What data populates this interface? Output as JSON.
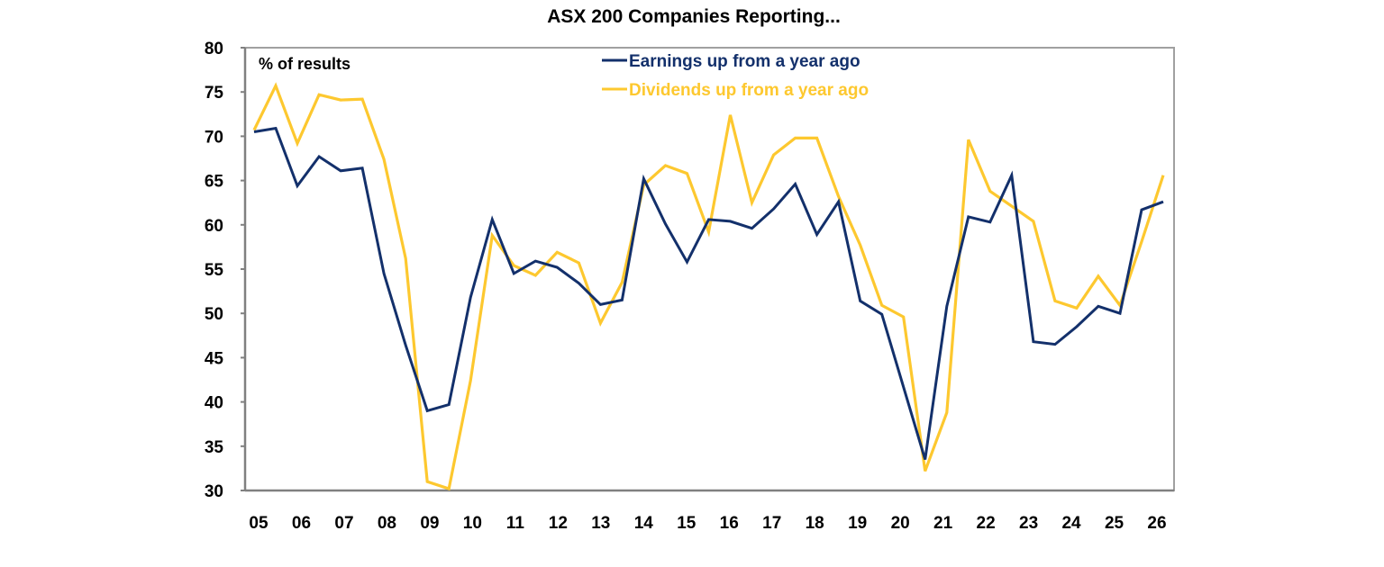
{
  "chart_data": {
    "type": "line",
    "title": "ASX 200 Companies Reporting...",
    "ylabel": "% of results",
    "xlabel": "",
    "ylim": [
      30,
      80
    ],
    "yticks": [
      "30",
      "35",
      "40",
      "45",
      "50",
      "55",
      "60",
      "65",
      "70",
      "75",
      "80"
    ],
    "x_tick_labels": [
      "05",
      "06",
      "07",
      "08",
      "09",
      "10",
      "11",
      "12",
      "13",
      "14",
      "15",
      "16",
      "17",
      "18",
      "19",
      "20",
      "21",
      "22",
      "23",
      "24",
      "25",
      "26"
    ],
    "frequency": "half-yearly",
    "grid": false,
    "legend_position": "top-right",
    "series": [
      {
        "name": "Earnings up from a year ago",
        "color": "#13306b",
        "values": [
          70.5,
          70.9,
          64.4,
          67.7,
          66.1,
          66.4,
          54.5,
          46.4,
          39.0,
          39.7,
          51.8,
          60.6,
          54.5,
          55.9,
          55.2,
          53.4,
          51.0,
          51.5,
          65.2,
          60.1,
          55.8,
          60.6,
          60.4,
          59.6,
          61.8,
          64.6,
          58.9,
          62.6,
          51.4,
          49.9,
          41.7,
          33.5,
          50.8,
          60.9,
          60.3,
          65.6,
          46.8,
          46.5,
          48.5,
          50.8,
          50.0,
          61.7,
          62.6
        ]
      },
      {
        "name": "Dividends up from a year ago",
        "color": "#fdc82f",
        "values": [
          70.7,
          75.7,
          69.2,
          74.7,
          74.1,
          74.2,
          67.4,
          56.2,
          31.0,
          30.2,
          42.4,
          58.8,
          55.4,
          54.3,
          56.9,
          55.7,
          48.9,
          53.5,
          64.5,
          66.7,
          65.8,
          59.2,
          72.4,
          62.5,
          67.9,
          69.8,
          69.8,
          63.2,
          57.7,
          50.9,
          49.6,
          32.2,
          38.8,
          69.6,
          63.8,
          62.1,
          60.4,
          51.4,
          50.6,
          54.2,
          50.9,
          58.1,
          65.6
        ]
      }
    ]
  }
}
